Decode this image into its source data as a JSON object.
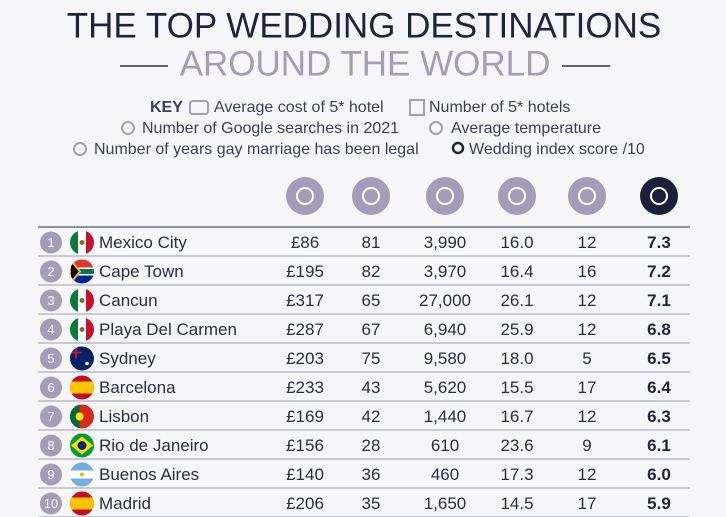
{
  "title": {
    "line1": "THE TOP WEDDING DESTINATIONS",
    "line2": "AROUND THE WORLD"
  },
  "key": {
    "label": "KEY",
    "items": [
      "Average cost of 5* hotel",
      "Number of 5* hotels",
      "Number of Google searches in 2021",
      "Average temperature",
      "Number of years gay marriage has been legal",
      "Wedding index score /10"
    ]
  },
  "table": {
    "rows": [
      [
        "1",
        "Mexico City",
        "£86",
        "81",
        "3,990",
        "16.0",
        "12",
        "7.3"
      ],
      [
        "2",
        "Cape Town",
        "£195",
        "82",
        "3,970",
        "16.4",
        "16",
        "7.2"
      ],
      [
        "3",
        "Cancun",
        "£317",
        "65",
        "27,000",
        "26.1",
        "12",
        "7.1"
      ],
      [
        "4",
        "Playa Del Carmen",
        "£287",
        "67",
        "6,940",
        "25.9",
        "12",
        "6.8"
      ],
      [
        "5",
        "Sydney",
        "£203",
        "75",
        "9,580",
        "18.0",
        "5",
        "6.5"
      ],
      [
        "6",
        "Barcelona",
        "£233",
        "43",
        "5,620",
        "15.5",
        "17",
        "6.4"
      ],
      [
        "7",
        "Lisbon",
        "£169",
        "42",
        "1,440",
        "16.7",
        "12",
        "6.3"
      ],
      [
        "8",
        "Rio de Janeiro",
        "£156",
        "28",
        "610",
        "23.6",
        "9",
        "6.1"
      ],
      [
        "9",
        "Buenos Aires",
        "£140",
        "36",
        "460",
        "17.3",
        "12",
        "6.0"
      ],
      [
        "10",
        "Madrid",
        "£206",
        "35",
        "1,650",
        "14.5",
        "17",
        "5.9"
      ]
    ]
  }
}
